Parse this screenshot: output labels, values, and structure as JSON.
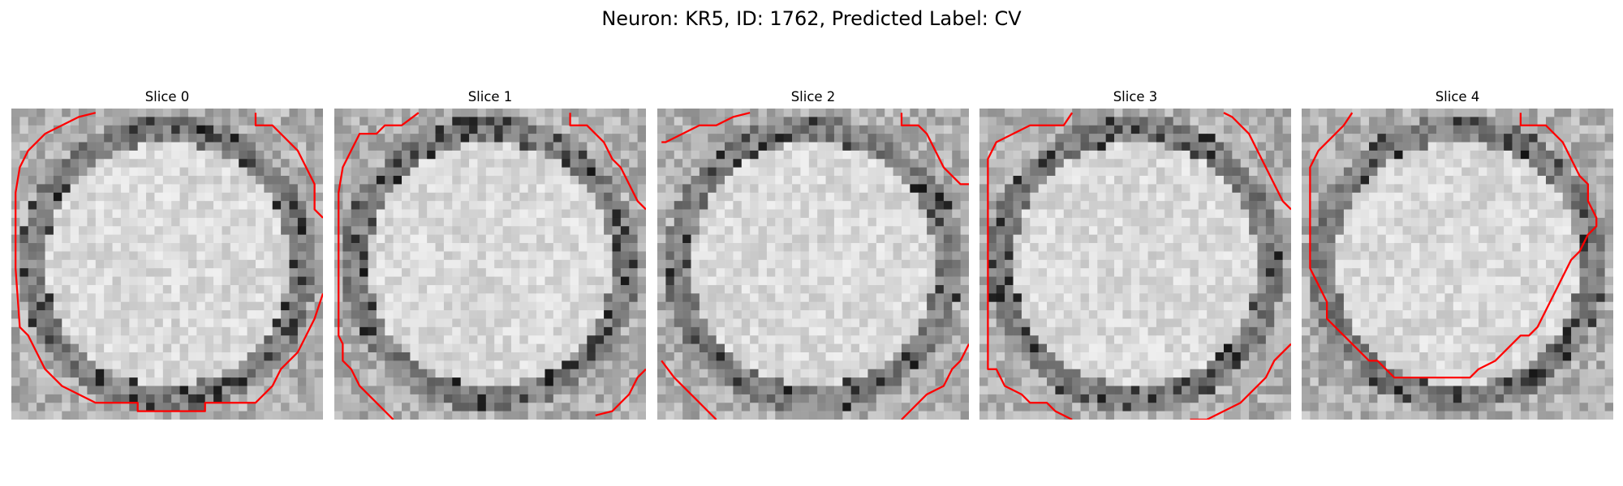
{
  "figure": {
    "title": "Neuron: KR5, ID: 1762, Predicted Label: CV"
  },
  "panels": [
    {
      "title": "Slice 0",
      "seed": 11,
      "contour": [
        [
          10,
          0.5
        ],
        [
          8,
          1
        ],
        [
          6,
          2
        ],
        [
          4,
          3
        ],
        [
          2,
          5
        ],
        [
          1,
          7
        ],
        [
          0.5,
          10
        ],
        [
          0.5,
          13
        ],
        [
          0.5,
          19
        ],
        [
          1,
          26
        ],
        [
          2,
          27
        ],
        [
          3,
          29
        ],
        [
          4,
          31
        ],
        [
          6,
          33
        ],
        [
          8,
          34
        ],
        [
          10,
          35
        ],
        [
          15,
          35
        ],
        [
          15,
          36
        ],
        [
          19,
          36
        ],
        [
          23,
          36
        ],
        [
          23,
          35
        ],
        [
          29,
          35
        ],
        [
          31,
          33
        ],
        [
          32,
          31
        ],
        [
          34,
          29
        ],
        [
          35,
          27
        ],
        [
          36,
          25
        ],
        [
          37,
          22
        ]
      ],
      "contour2": [
        [
          29,
          0.5
        ],
        [
          29,
          2
        ],
        [
          31,
          2
        ],
        [
          32,
          3
        ],
        [
          34,
          5
        ],
        [
          35,
          7
        ],
        [
          36,
          9
        ],
        [
          36,
          12
        ],
        [
          37,
          13
        ]
      ]
    },
    {
      "title": "Slice 1",
      "seed": 23,
      "contour": [
        [
          10,
          0.5
        ],
        [
          8,
          2
        ],
        [
          6,
          2
        ],
        [
          5,
          3
        ],
        [
          3,
          3
        ],
        [
          2,
          5
        ],
        [
          1,
          7
        ],
        [
          0.5,
          10
        ],
        [
          0.5,
          27
        ],
        [
          1,
          28
        ],
        [
          1,
          30
        ],
        [
          2,
          31
        ],
        [
          3,
          33
        ],
        [
          4,
          34
        ],
        [
          5,
          35
        ],
        [
          6,
          36
        ],
        [
          7,
          37
        ]
      ],
      "contour2": [
        [
          28,
          0.5
        ],
        [
          28,
          2
        ],
        [
          30,
          2
        ],
        [
          32,
          4
        ],
        [
          33,
          6
        ],
        [
          34,
          7
        ],
        [
          35,
          9
        ],
        [
          36,
          11
        ],
        [
          37,
          12
        ]
      ],
      "contour3": [
        [
          37,
          31
        ],
        [
          36,
          32
        ],
        [
          35,
          34
        ],
        [
          34,
          35
        ],
        [
          33,
          36
        ],
        [
          31,
          36.5
        ]
      ]
    },
    {
      "title": "Slice 2",
      "seed": 37,
      "contour": [
        [
          11,
          0.5
        ],
        [
          9,
          1
        ],
        [
          7,
          2
        ],
        [
          5,
          2
        ],
        [
          3,
          3
        ],
        [
          1,
          4
        ],
        [
          0.5,
          4
        ]
      ],
      "contour2": [
        [
          29,
          0.5
        ],
        [
          29,
          2
        ],
        [
          31,
          2
        ],
        [
          32,
          3
        ],
        [
          33,
          5
        ],
        [
          34,
          7
        ],
        [
          35,
          8
        ],
        [
          36,
          9
        ],
        [
          37,
          9
        ]
      ],
      "contour3": [
        [
          0.5,
          30
        ],
        [
          2,
          32
        ],
        [
          3,
          33
        ],
        [
          4,
          34
        ],
        [
          5,
          35
        ],
        [
          6,
          36
        ],
        [
          7,
          37
        ]
      ],
      "contour4": [
        [
          37,
          28
        ],
        [
          36,
          30
        ],
        [
          35,
          31
        ],
        [
          34,
          33
        ],
        [
          32,
          34
        ],
        [
          31,
          35
        ],
        [
          30,
          36
        ],
        [
          29,
          37
        ]
      ]
    },
    {
      "title": "Slice 3",
      "seed": 53,
      "contour": [
        [
          11,
          0.5
        ],
        [
          10,
          2
        ],
        [
          8,
          2
        ],
        [
          6,
          2
        ],
        [
          4,
          3
        ],
        [
          2,
          4
        ],
        [
          1,
          6
        ],
        [
          1,
          9
        ],
        [
          1,
          12
        ],
        [
          1,
          29
        ],
        [
          1,
          31
        ],
        [
          2,
          31
        ],
        [
          3,
          33
        ],
        [
          5,
          34
        ],
        [
          6,
          35
        ],
        [
          8,
          35
        ],
        [
          9,
          36
        ],
        [
          11,
          37
        ]
      ],
      "contour2": [
        [
          29,
          0.5
        ],
        [
          30,
          1
        ],
        [
          31,
          2
        ],
        [
          32,
          3
        ],
        [
          33,
          5
        ],
        [
          34,
          7
        ],
        [
          35,
          9
        ],
        [
          36,
          11
        ],
        [
          37,
          12
        ]
      ],
      "contour3": [
        [
          37,
          28
        ],
        [
          36,
          29
        ],
        [
          35,
          30
        ],
        [
          34,
          32
        ],
        [
          33,
          33
        ],
        [
          32,
          34
        ],
        [
          31,
          35
        ],
        [
          29,
          36
        ],
        [
          27,
          37
        ],
        [
          25,
          37
        ]
      ]
    },
    {
      "title": "Slice 4",
      "seed": 71,
      "contour": [
        [
          6,
          0.5
        ],
        [
          5,
          2
        ],
        [
          4,
          3
        ],
        [
          2,
          5
        ],
        [
          1,
          7
        ],
        [
          1,
          11
        ],
        [
          1,
          15
        ],
        [
          1,
          19
        ],
        [
          2,
          21
        ],
        [
          3,
          23
        ],
        [
          3,
          25
        ],
        [
          4,
          26
        ],
        [
          5,
          27
        ],
        [
          6,
          28
        ],
        [
          7,
          29
        ],
        [
          8,
          30
        ],
        [
          9,
          30
        ],
        [
          10,
          31
        ],
        [
          11,
          32
        ],
        [
          13,
          32
        ],
        [
          15,
          32
        ],
        [
          17,
          32
        ],
        [
          20,
          32
        ],
        [
          21,
          31
        ],
        [
          23,
          30
        ],
        [
          24,
          29
        ],
        [
          25,
          28
        ],
        [
          26,
          27
        ],
        [
          27,
          27
        ],
        [
          28,
          26
        ],
        [
          29,
          24
        ],
        [
          30,
          22
        ],
        [
          31,
          20
        ],
        [
          32,
          18
        ],
        [
          33,
          17
        ],
        [
          34,
          15
        ],
        [
          35,
          14
        ],
        [
          35,
          13
        ],
        [
          34,
          11
        ],
        [
          34,
          9
        ],
        [
          33,
          8
        ],
        [
          32,
          6
        ],
        [
          31,
          4
        ],
        [
          30,
          3
        ],
        [
          29,
          2
        ],
        [
          27,
          2
        ],
        [
          26,
          2
        ],
        [
          26,
          0.5
        ]
      ]
    }
  ],
  "colors": {
    "contour": "#ff0000",
    "background": "#ffffff"
  }
}
